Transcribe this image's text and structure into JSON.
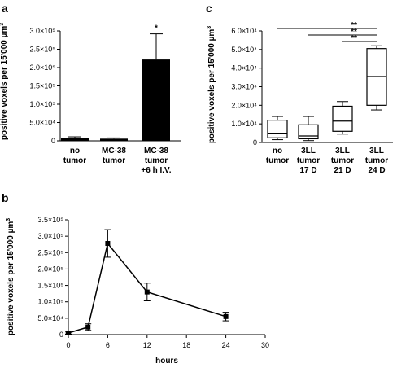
{
  "chart_data": [
    {
      "panel": "a",
      "type": "bar",
      "ylabel": "positive voxels per 15'000 µm³",
      "ylim": [
        0,
        300000
      ],
      "yticks": [
        "0",
        "5.0×10⁴",
        "1.0×10⁵",
        "1.5×10⁵",
        "2.0×10⁵",
        "2.5×10⁵",
        "3.0×10⁵"
      ],
      "categories": [
        [
          "no",
          "tumor"
        ],
        [
          "MC-38",
          "tumor"
        ],
        [
          "MC-38",
          "tumor",
          "+6 h I.V."
        ]
      ],
      "values": [
        8000,
        6000,
        222000
      ],
      "errors": [
        3000,
        2000,
        70000
      ],
      "significance": [
        "",
        "",
        "*"
      ]
    },
    {
      "panel": "b",
      "type": "line",
      "xlabel": "hours",
      "ylabel": "positive voxels per 15'000 µm³",
      "xlim": [
        0,
        30
      ],
      "ylim": [
        0,
        350000
      ],
      "xticks": [
        "0",
        "6",
        "12",
        "18",
        "24",
        "30"
      ],
      "yticks": [
        "0",
        "5.0×10⁴",
        "1.0×10⁵",
        "1.5×10⁵",
        "2.0×10⁵",
        "2.5×10⁵",
        "3.0×10⁵",
        "3.5×10⁵"
      ],
      "x": [
        0,
        3,
        6,
        12,
        24
      ],
      "y": [
        5000,
        23000,
        278000,
        130000,
        55000
      ],
      "errors": [
        3000,
        10000,
        42000,
        27000,
        13000
      ]
    },
    {
      "panel": "c",
      "type": "box",
      "ylabel": "positive voxels per 15'000 µm³",
      "ylim": [
        0,
        60000
      ],
      "yticks": [
        "0",
        "1.0×10⁴",
        "2.0×10⁴",
        "3.0×10⁴",
        "4.0×10⁴",
        "5.0×10⁴",
        "6.0×10⁴"
      ],
      "categories": [
        [
          "no",
          "tumor"
        ],
        [
          "3LL",
          "tumor",
          "17 D"
        ],
        [
          "3LL",
          "tumor",
          "21 D"
        ],
        [
          "3LL",
          "tumor",
          "24 D"
        ]
      ],
      "boxes": [
        {
          "min": 1500,
          "q1": 2500,
          "median": 5000,
          "q3": 12000,
          "max": 14000
        },
        {
          "min": 1000,
          "q1": 2000,
          "median": 3500,
          "q3": 9500,
          "max": 14000
        },
        {
          "min": 4500,
          "q1": 6000,
          "median": 11500,
          "q3": 19500,
          "max": 22000
        },
        {
          "min": 17500,
          "q1": 20000,
          "median": 35500,
          "q3": 50500,
          "max": 52000
        }
      ],
      "significance_brackets": [
        {
          "from": 0,
          "to": 3,
          "label": "**"
        },
        {
          "from": 1,
          "to": 3,
          "label": "**"
        },
        {
          "from": 2,
          "to": 3,
          "label": "**"
        }
      ]
    }
  ],
  "panels": {
    "a": {
      "letter": "a",
      "ylabel_lines": [
        "positive voxels per 15'000 ",
        "µm",
        "3"
      ]
    },
    "b": {
      "letter": "b",
      "ylabel_lines": [
        "positive voxels per 15'000 ",
        "µm",
        "3"
      ]
    },
    "c": {
      "letter": "c",
      "ylabel_lines": [
        "positive voxels per 15'000 ",
        "µm",
        "3"
      ]
    }
  }
}
